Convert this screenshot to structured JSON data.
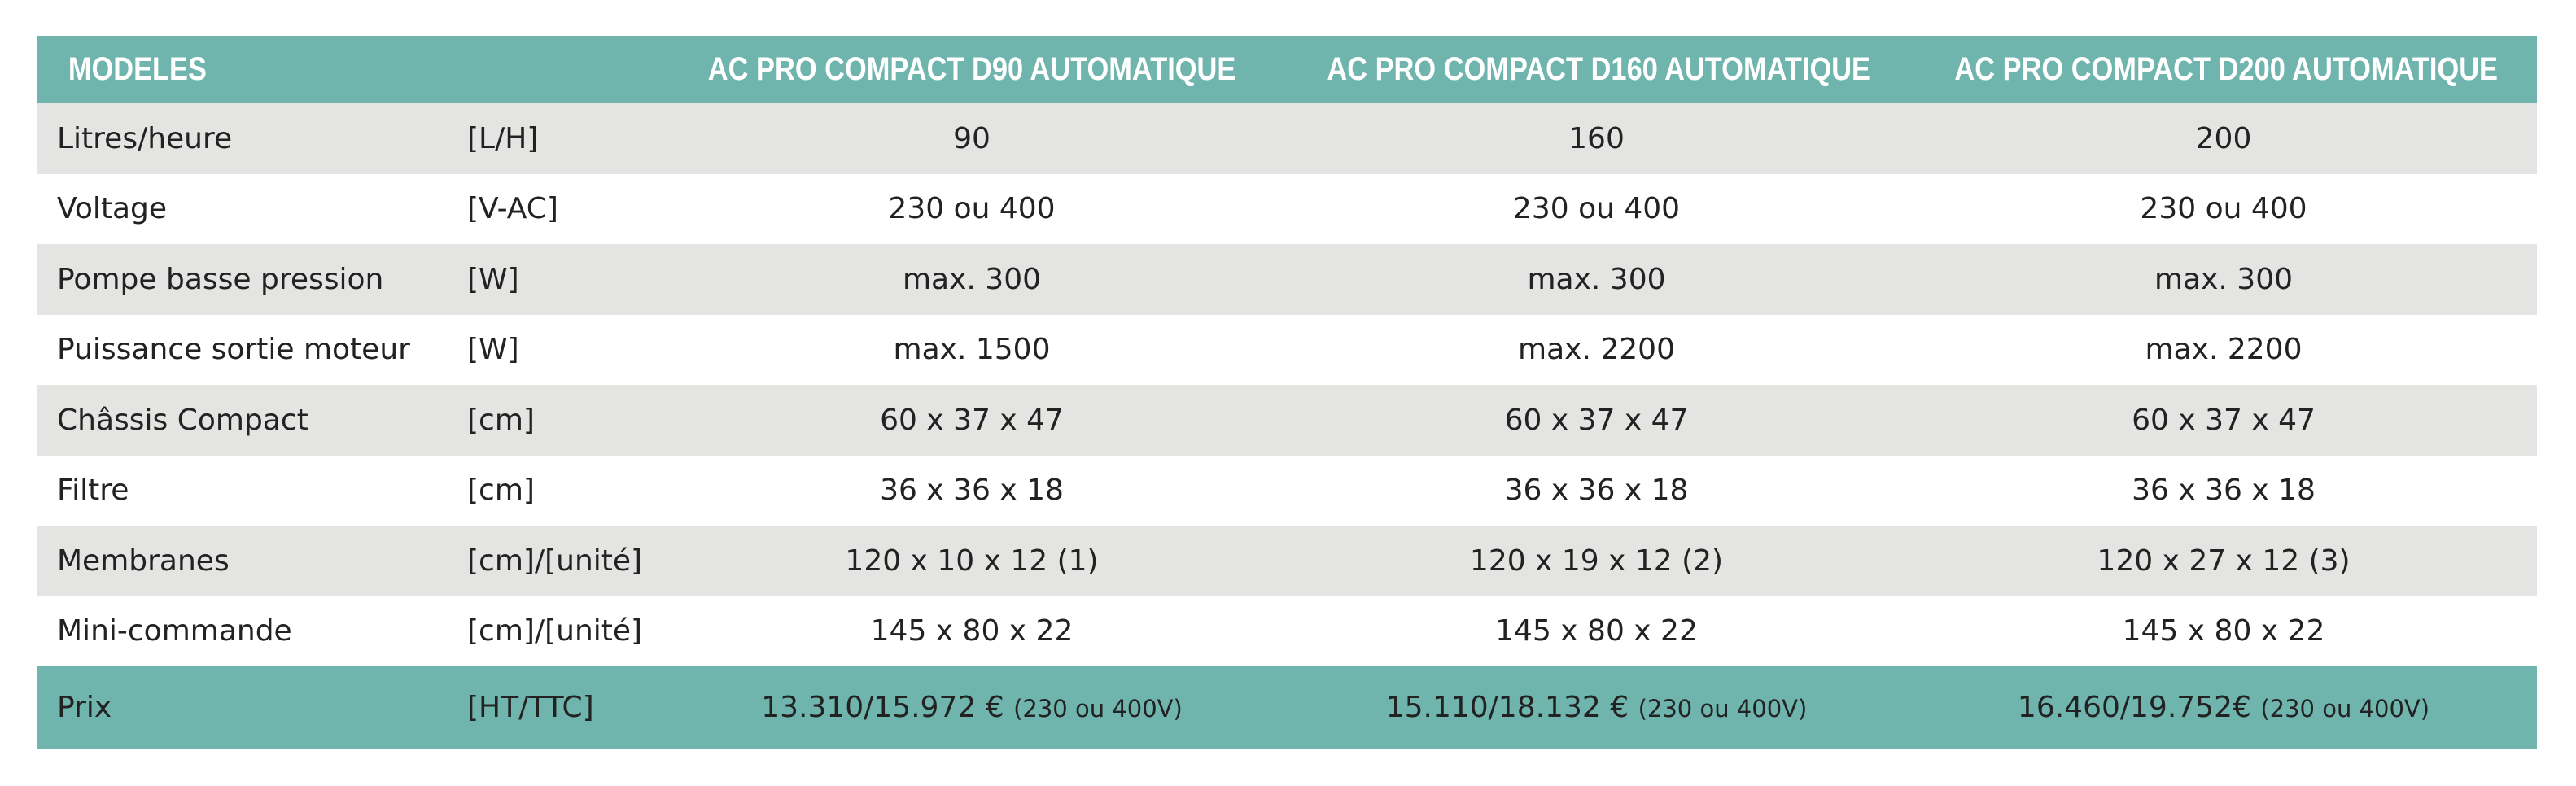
{
  "header": {
    "label": "MODELES",
    "models": [
      "AC PRO COMPACT D90 AUTOMATIQUE",
      "AC PRO COMPACT D160 AUTOMATIQUE",
      "AC PRO COMPACT D200 AUTOMATIQUE"
    ]
  },
  "rows": [
    [
      "Litres/heure",
      "[L/H]",
      "90",
      "160",
      "200"
    ],
    [
      "Voltage",
      "[V-AC]",
      "230 ou 400",
      "230 ou 400",
      "230 ou 400"
    ],
    [
      "Pompe basse pression",
      "[W]",
      "max. 300",
      "max. 300",
      "max. 300"
    ],
    [
      "Puissance sortie moteur",
      "[W]",
      "max. 1500",
      "max. 2200",
      "max. 2200"
    ],
    [
      "Châssis Compact",
      "[cm]",
      "60 x 37 x 47",
      "60 x 37 x 47",
      "60 x 37 x 47"
    ],
    [
      "Filtre",
      "[cm]",
      "36 x 36 x 18",
      "36 x 36 x 18",
      "36 x 36 x 18"
    ],
    [
      "Membranes",
      "[cm]/[unité]",
      "120 x 10 x 12 (1)",
      "120 x 19 x 12 (2)",
      "120 x 27 x 12 (3)"
    ],
    [
      "Mini-commande",
      "[cm]/[unité]",
      "145 x 80 x 22",
      "145 x 80 x 22",
      "145 x 80 x 22"
    ]
  ],
  "price": {
    "label": "Prix",
    "unit": "[HT/TTC]",
    "values": [
      {
        "price": "13.310/15.972 €",
        "note": "(230 ou 400V)"
      },
      {
        "price": "15.110/18.132 €",
        "note": "(230 ou 400V)"
      },
      {
        "price": "16.460/19.752€",
        "note": "(230 ou 400V)"
      }
    ]
  }
}
